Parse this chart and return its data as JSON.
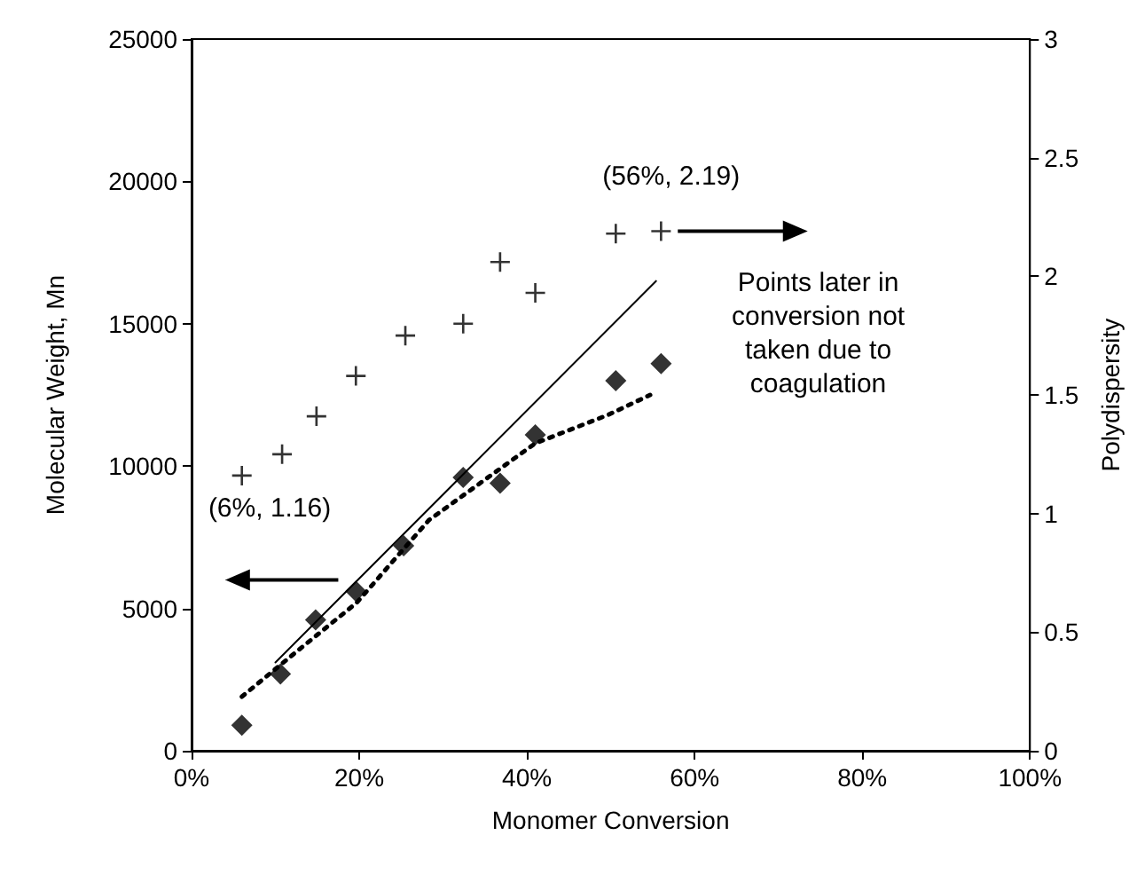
{
  "chart_data": {
    "type": "scatter",
    "xlabel": "Monomer Conversion",
    "ylabel": "Molecular Weight, Mn",
    "y2label": "Polydispersity",
    "xlim": [
      0,
      100
    ],
    "xticks": [
      {
        "value": 0,
        "label": "0%"
      },
      {
        "value": 20,
        "label": "20%"
      },
      {
        "value": 40,
        "label": "40%"
      },
      {
        "value": 60,
        "label": "60%"
      },
      {
        "value": 80,
        "label": "80%"
      },
      {
        "value": 100,
        "label": "100%"
      }
    ],
    "ylim": [
      0,
      25000
    ],
    "yticks": [
      0,
      5000,
      10000,
      15000,
      20000,
      25000
    ],
    "y2lim": [
      0,
      3
    ],
    "y2ticks": [
      0,
      0.5,
      1,
      1.5,
      2,
      2.5,
      3
    ],
    "grid": false,
    "series": [
      {
        "marker": "diamond",
        "color": "#000000",
        "x": [
          6,
          10.6,
          14.8,
          19.6,
          25.3,
          32.4,
          36.8,
          41,
          50.6,
          56
        ],
        "values": [
          900,
          2700,
          4600,
          5600,
          7200,
          9600,
          9400,
          11100,
          13000,
          13600
        ]
      },
      {
        "marker": "cross",
        "axis": "y2",
        "color": "#000000",
        "x": [
          6,
          10.8,
          14.9,
          19.6,
          25.5,
          32.4,
          36.8,
          41,
          50.6,
          56
        ],
        "values": [
          1.16,
          1.25,
          1.41,
          1.58,
          1.75,
          1.8,
          2.06,
          1.93,
          2.18,
          2.19
        ]
      },
      {
        "type": "line",
        "line_style": "solid",
        "marker": "none",
        "color": "#000000",
        "x": [
          10,
          55.4
        ],
        "values": [
          3100,
          16500
        ]
      },
      {
        "type": "line",
        "line_style": "dotted",
        "marker": "none",
        "color": "#000000",
        "x": [
          6,
          12.6,
          19.7,
          28.3,
          41,
          49.7,
          54.7
        ],
        "values": [
          1900,
          3500,
          5200,
          8100,
          10800,
          11800,
          12500
        ]
      }
    ],
    "annotations": [
      "(6%, 1.16)",
      "(56%, 2.19)",
      "Points later in conversion not taken due to coagulation"
    ]
  }
}
